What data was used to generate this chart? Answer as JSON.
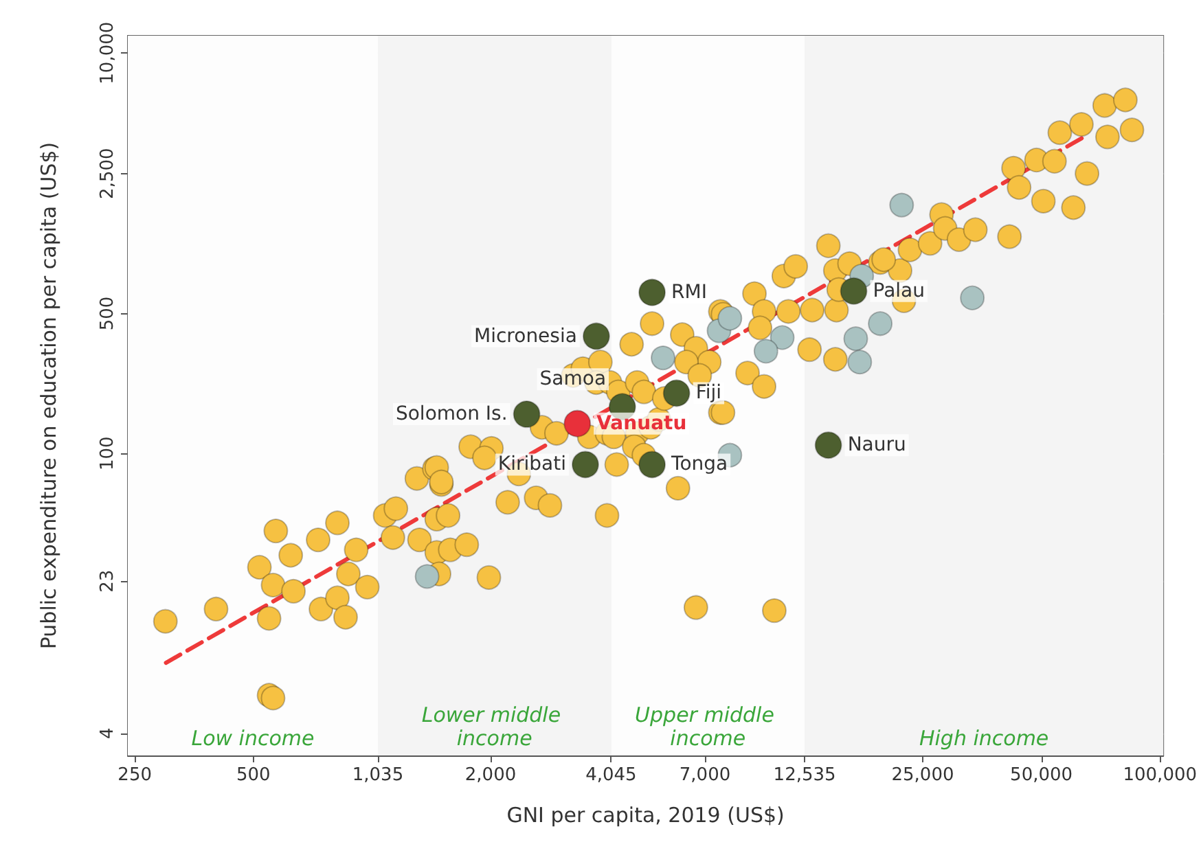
{
  "chart_data": {
    "type": "scatter",
    "xlabel": "GNI per capita, 2019 (US$)",
    "ylabel": "Public expenditure on education per capita (US$)",
    "log": "xy",
    "grid": true,
    "marker": "circle",
    "xlim": [
      240,
      102000
    ],
    "ylim": [
      3.1,
      12200
    ],
    "xticks": [
      250,
      500,
      {
        "value": 1035,
        "label": "1,035"
      },
      {
        "value": 2000,
        "label": "2,000"
      },
      {
        "value": 4045,
        "label": "4,045"
      },
      {
        "value": 7000,
        "label": "7,000"
      },
      {
        "value": 12535,
        "label": "12,535"
      },
      {
        "value": 25000,
        "label": "25,000"
      },
      {
        "value": 50000,
        "label": "50,000"
      },
      {
        "value": 100000,
        "label": "100,000"
      }
    ],
    "yticks": [
      4,
      23,
      100,
      500,
      {
        "value": 2500,
        "label": "2,500"
      },
      {
        "value": 10000,
        "label": "10,000"
      }
    ],
    "bands": [
      {
        "axis": "x",
        "from": 240,
        "to": 1035,
        "label": "Low income",
        "color": "#fdfdfd"
      },
      {
        "axis": "x",
        "from": 1035,
        "to": 4045,
        "label": "Lower middle income",
        "color": "#f4f4f4"
      },
      {
        "axis": "x",
        "from": 4045,
        "to": 12535,
        "label": "Upper middle income",
        "color": "#fdfdfd"
      },
      {
        "axis": "x",
        "from": 12535,
        "to": 102000,
        "label": "High income",
        "color": "#f4f4f4"
      }
    ],
    "series": [
      {
        "type": "scatter",
        "color": "#f6c142",
        "x": [
          299,
          402,
          548,
          561,
          570,
          622,
          730,
          817,
          518,
          561,
          632,
          548,
          742,
          817,
          857,
          871,
          912,
          973,
          1080,
          1150,
          1130,
          1320,
          1460,
          1580,
          1740,
          1460,
          1560,
          1300,
          1440,
          1500,
          1480,
          1980,
          1780,
          2010,
          1930,
          1460,
          1500,
          2210,
          2610,
          2830,
          2360,
          2700,
          2940,
          3240,
          3430,
          3800,
          3710,
          4020,
          4220,
          4710,
          3560,
          3950,
          4110,
          4180,
          4710,
          4630,
          4900,
          3950,
          5980,
          4560,
          5140,
          6130,
          6640,
          7180,
          6280,
          6790,
          7660,
          5100,
          5350,
          7660,
          4900,
          5520,
          6640,
          10500,
          7780,
          9350,
          9890,
          11400,
          13100,
          15100,
          9660,
          12900,
          15000,
          8980,
          9890,
          7780,
          11100,
          11900,
          14400,
          15000,
          16300,
          15300,
          19500,
          21900,
          22400,
          19900,
          23200,
          26100,
          27900,
          28500,
          30900,
          34000,
          41500,
          42500,
          48600,
          54000,
          43900,
          50600,
          65300,
          60300,
          55700,
          63200,
          72400,
          81700,
          84900,
          73600
        ],
        "values": [
          14.5,
          16.7,
          6.2,
          6.0,
          41,
          31,
          37,
          45,
          27,
          22,
          20.5,
          15,
          16.7,
          19,
          15.2,
          25,
          33,
          21.5,
          49,
          53,
          38,
          37,
          32,
          33,
          35,
          47,
          49,
          75,
          84,
          70,
          25,
          24,
          108,
          106,
          95,
          85,
          72,
          57,
          60,
          55,
          79,
          135,
          126,
          245,
          265,
          286,
          226,
          226,
          203,
          226,
          121,
          126,
          121,
          88,
          126,
          108,
          98,
          49,
          67,
          351,
          445,
          392,
          335,
          286,
          286,
          245,
          512,
          135,
          148,
          160,
          203,
          188,
          17,
          16.4,
          495,
          628,
          512,
          512,
          520,
          520,
          424,
          330,
          295,
          252,
          216,
          160,
          769,
          859,
          1090,
          819,
          887,
          658,
          899,
          819,
          579,
          929,
          1040,
          1120,
          1560,
          1330,
          1170,
          1310,
          1210,
          2660,
          2920,
          2880,
          2130,
          1820,
          2500,
          1690,
          4000,
          4400,
          5470,
          5830,
          4130,
          3810
        ]
      },
      {
        "type": "scatter",
        "color": "#a9c2c1",
        "x": [
          1380,
          22100,
          33400,
          17500,
          7600,
          8100,
          11000,
          10000,
          19500,
          16900,
          17300,
          5480,
          8100
        ],
        "values": [
          24.3,
          1740,
          598,
          769,
          410,
          473,
          379,
          324,
          445,
          374,
          286,
          300,
          98
        ]
      },
      {
        "type": "line",
        "color": "#ee3a3a",
        "line_style": "dashed",
        "marker": "none",
        "x": [
          300,
          64000
        ],
        "values": [
          9,
          3800
        ]
      },
      {
        "type": "scatter",
        "color": "#4d5f2f",
        "x": [
          5140,
          3710,
          4320,
          2470,
          5930,
          3480,
          5140,
          16700,
          14400
        ],
        "values": [
          637,
          385,
          171,
          157,
          200,
          88,
          88,
          647,
          110
        ],
        "value_labels": [
          "RMI",
          "Micronesia",
          "Samoa",
          "Solomon Is.",
          "Fiji",
          "Kiribati",
          "Tonga",
          "Palau",
          "Nauru"
        ]
      },
      {
        "type": "scatter",
        "color": "#e8303a",
        "x": [
          3320
        ],
        "values": [
          141
        ],
        "value_labels": [
          "Vanuatu"
        ]
      }
    ]
  }
}
